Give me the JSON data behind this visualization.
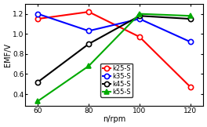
{
  "x": [
    60,
    80,
    100,
    120
  ],
  "series": [
    {
      "label": "k25-S",
      "color": "#ff0000",
      "marker": "o",
      "values": [
        1.15,
        1.22,
        0.97,
        0.47
      ],
      "filled": false
    },
    {
      "label": "k35-S",
      "color": "#0000ff",
      "marker": "o",
      "values": [
        1.2,
        1.03,
        1.15,
        0.92
      ],
      "filled": false
    },
    {
      "label": "k45-S",
      "color": "#000000",
      "marker": "o",
      "values": [
        0.52,
        0.9,
        1.18,
        1.15
      ],
      "filled": false
    },
    {
      "label": "k55-S",
      "color": "#00aa00",
      "marker": "^",
      "values": [
        0.33,
        0.68,
        1.2,
        1.18
      ],
      "filled": true
    }
  ],
  "xlabel": "n/rpm",
  "ylabel": "EMF/V",
  "xlim": [
    55,
    125
  ],
  "ylim": [
    0.28,
    1.3
  ],
  "xticks": [
    60,
    80,
    100,
    120
  ],
  "yticks": [
    0.4,
    0.6,
    0.8,
    1.0,
    1.2
  ],
  "background_color": "#ffffff",
  "axis_fontsize": 7,
  "tick_fontsize": 6.5,
  "legend_fontsize": 6.0,
  "linewidth": 1.5,
  "markersize": 4.5
}
